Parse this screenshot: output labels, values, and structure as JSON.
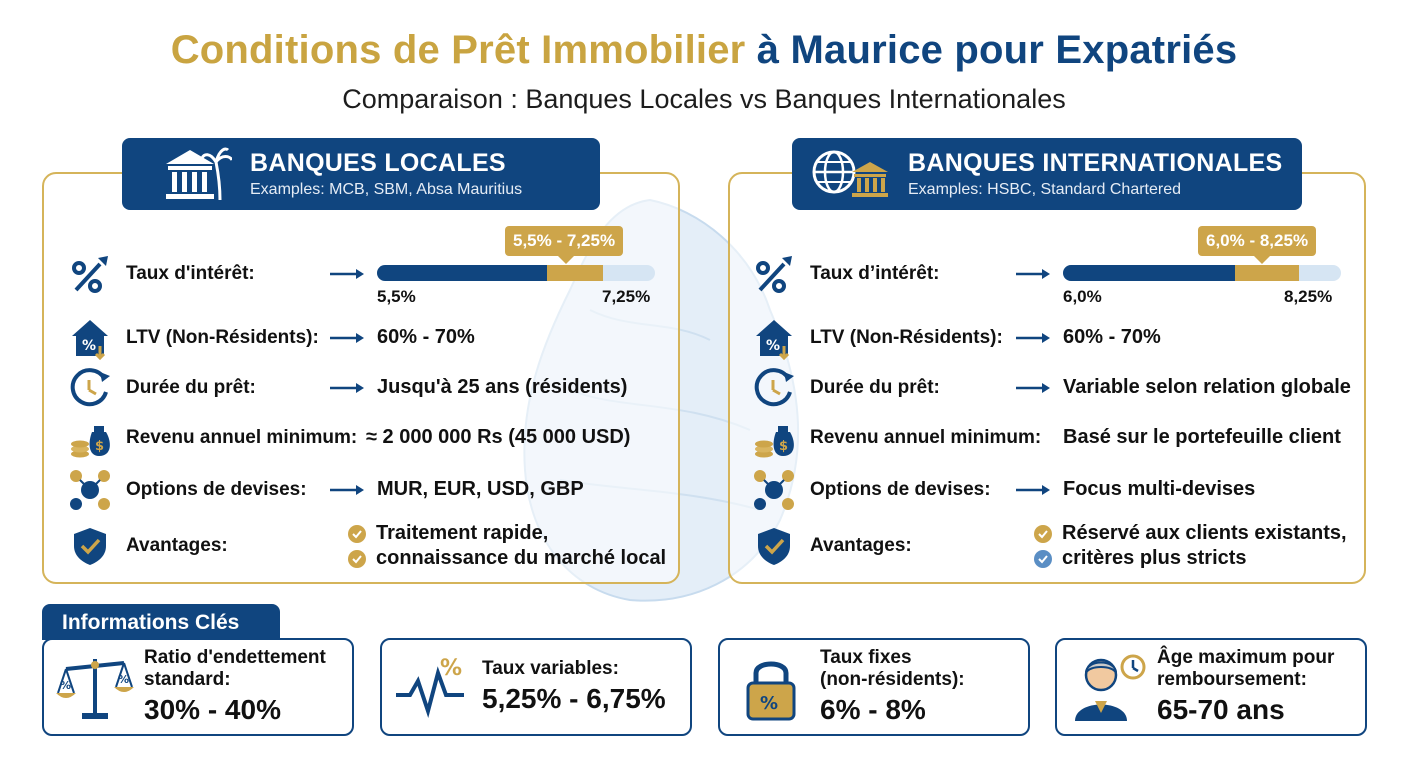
{
  "title": {
    "part1": "Conditions de Prêt Immobilier",
    "part2": "à Maurice pour Expatriés"
  },
  "subtitle": "Comparaison : Banques Locales vs Banques Internationales",
  "colors": {
    "navy": "#10457f",
    "gold": "#cda54a",
    "light_blue": "#d6e5f3"
  },
  "local": {
    "title": "BANQUES LOCALES",
    "subtitle": "Examples: MCB, SBM, Absa Mauritius",
    "icon": "bank-palm-icon",
    "rate": {
      "label": "Taux d'intérêt:",
      "badge": "5,5% - 7,25%",
      "min": "5,5%",
      "max": "7,25%",
      "min_fraction": 0.0,
      "low_fraction": 0.61,
      "high_fraction": 0.81
    },
    "ltv": {
      "label": "LTV (Non-Résidents):",
      "value": "60% - 70%"
    },
    "duration": {
      "label": "Durée du prêt:",
      "value": "Jusqu'à 25 ans (résidents)"
    },
    "income": {
      "label": "Revenu annuel minimum:",
      "value": "≈ 2 000 000 Rs (45 000 USD)"
    },
    "currency": {
      "label": "Options de devises:",
      "value": "MUR, EUR, USD, GBP"
    },
    "advantages": {
      "label": "Avantages:",
      "items": [
        "Traitement rapide,",
        "connaissance du marché local"
      ]
    }
  },
  "international": {
    "title": "BANQUES INTERNATIONALES",
    "subtitle": "Examples: HSBC, Standard Chartered",
    "icon": "globe-bank-icon",
    "rate": {
      "label": "Taux d’intérêt:",
      "badge": "6,0% - 8,25%",
      "min": "6,0%",
      "max": "8,25%",
      "low_fraction": 0.62,
      "high_fraction": 0.85
    },
    "ltv": {
      "label": "LTV (Non-Résidents):",
      "value": "60% - 70%"
    },
    "duration": {
      "label": "Durée du prêt:",
      "value": "Variable selon relation globale"
    },
    "income": {
      "label": "Revenu annuel minimum:",
      "value": "Basé sur le portefeuille client"
    },
    "currency": {
      "label": "Options de devises:",
      "value": "Focus multi-devises"
    },
    "advantages": {
      "label": "Avantages:",
      "items": [
        "Réservé aux clients existants,",
        "critères plus stricts"
      ]
    }
  },
  "key_info": {
    "title": "Informations Clés",
    "cards": [
      {
        "label_lines": [
          "Ratio d'endettement",
          "standard:"
        ],
        "value": "30% - 40%",
        "icon": "scale-icon"
      },
      {
        "label_lines": [
          "Taux variables:"
        ],
        "value": "5,25% - 6,75%",
        "icon": "pulse-percent-icon"
      },
      {
        "label_lines": [
          "Taux fixes",
          "(non-résidents):"
        ],
        "value": "6% - 8%",
        "icon": "lock-percent-icon"
      },
      {
        "label_lines": [
          "Âge maximum pour",
          "remboursement:"
        ],
        "value": "65-70 ans",
        "icon": "senior-clock-icon"
      }
    ]
  }
}
